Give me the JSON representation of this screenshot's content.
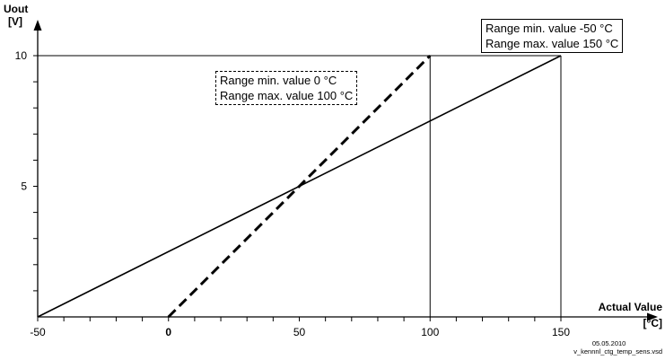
{
  "chart_data": {
    "type": "line",
    "y_axis_title": "Uout",
    "y_axis_unit": "[V]",
    "x_axis_title": "Actual Value",
    "x_axis_unit": "[°C]",
    "x_ticks": [
      "-50",
      "0",
      "50",
      "100",
      "150"
    ],
    "y_ticks": [
      "5",
      "10"
    ],
    "xlim": [
      -50,
      150
    ],
    "ylim": [
      0,
      10
    ],
    "series": [
      {
        "style": "solid",
        "x": [
          -50,
          150
        ],
        "y": [
          0,
          10
        ]
      },
      {
        "style": "dashed",
        "x": [
          0,
          100
        ],
        "y": [
          0,
          10
        ]
      }
    ],
    "vertical_markers": [
      100,
      150
    ],
    "horizontal_marker": 10
  },
  "annotations": {
    "range_wide": {
      "line1": "Range min. value -50 °C",
      "line2": "Range max. value 150 °C"
    },
    "range_narrow": {
      "line1": "Range min. value 0 °C",
      "line2": "Range max. value 100 °C"
    }
  },
  "footer": {
    "date": "05.05.2010",
    "filename": "v_kennnl_ctg_temp_sens.vsd"
  }
}
